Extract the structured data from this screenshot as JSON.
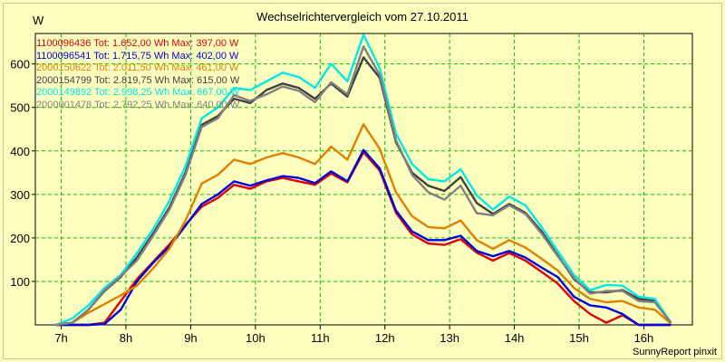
{
  "chart_data": {
    "type": "line",
    "title": "Wechselrichtervergleich vom 27.10.2011",
    "ylabel": "W",
    "xlabel": "",
    "footer": "SunnyReport pinxit",
    "ylim": [
      0,
      670
    ],
    "xlim": [
      6.6,
      16.75
    ],
    "grid": true,
    "legend_position": "top-left",
    "y_ticks": [
      100,
      200,
      300,
      400,
      500,
      600
    ],
    "y_tick_labels": [
      "100",
      "200",
      "300",
      "400",
      "500",
      "600"
    ],
    "x_ticks": [
      7,
      8,
      9,
      10,
      11,
      12,
      13,
      14,
      15,
      16
    ],
    "x_tick_labels": [
      "7h",
      "8h",
      "9h",
      "10h",
      "11h",
      "12h",
      "13h",
      "14h",
      "15h",
      "16h"
    ],
    "x": [
      6.92,
      7.17,
      7.42,
      7.67,
      7.92,
      8.17,
      8.42,
      8.67,
      8.92,
      9.17,
      9.42,
      9.67,
      9.92,
      10.17,
      10.42,
      10.67,
      10.92,
      11.17,
      11.42,
      11.67,
      11.92,
      12.17,
      12.42,
      12.67,
      12.92,
      13.17,
      13.42,
      13.67,
      13.92,
      14.17,
      14.42,
      14.67,
      14.92,
      15.17,
      15.42,
      15.67,
      15.92,
      16.17,
      16.42
    ],
    "series": [
      {
        "name": "1100096436",
        "label": "1100096436 Tot: 1.652,00 Wh Max: 397,00 W",
        "color": "#dd0000",
        "values": [
          0,
          0,
          0,
          5,
          55,
          105,
          145,
          185,
          230,
          272,
          292,
          322,
          313,
          330,
          338,
          330,
          322,
          348,
          328,
          397,
          355,
          258,
          208,
          187,
          184,
          197,
          166,
          148,
          165,
          148,
          122,
          95,
          55,
          25,
          5,
          22,
          0,
          0,
          0
        ]
      },
      {
        "name": "1100096541",
        "label": "1100096541 Tot: 1.715,75 Wh Max: 402,00 W",
        "color": "#0000dd",
        "values": [
          0,
          0,
          0,
          2,
          35,
          100,
          143,
          180,
          228,
          278,
          300,
          330,
          320,
          332,
          342,
          338,
          326,
          353,
          330,
          402,
          360,
          263,
          215,
          195,
          195,
          205,
          170,
          158,
          170,
          155,
          132,
          110,
          65,
          45,
          40,
          25,
          0,
          0,
          0
        ]
      },
      {
        "name": "2000150622",
        "label": "2000150622 Tot: 2.011,50 Wh Max: 461,00 W",
        "color": "#e08000",
        "values": [
          0,
          5,
          28,
          48,
          68,
          90,
          130,
          175,
          240,
          325,
          345,
          380,
          370,
          385,
          395,
          385,
          370,
          410,
          380,
          461,
          405,
          305,
          250,
          225,
          222,
          240,
          195,
          175,
          195,
          178,
          152,
          125,
          85,
          60,
          52,
          55,
          40,
          35,
          3
        ]
      },
      {
        "name": "2000154799",
        "label": "2000154799 Tot: 2.819,75 Wh Max: 615,00 W",
        "color": "#404040",
        "values": [
          0,
          5,
          35,
          78,
          110,
          155,
          210,
          270,
          350,
          460,
          480,
          520,
          510,
          540,
          555,
          545,
          520,
          555,
          525,
          615,
          568,
          420,
          350,
          320,
          308,
          340,
          280,
          255,
          278,
          258,
          215,
          160,
          105,
          75,
          75,
          80,
          60,
          55,
          5
        ]
      },
      {
        "name": "2000149892",
        "label": "2000149892 Tot: 2.998,25 Wh Max: 667,00 W",
        "color": "#00e8e8",
        "values": [
          0,
          15,
          45,
          85,
          115,
          165,
          220,
          285,
          365,
          475,
          500,
          545,
          540,
          560,
          580,
          570,
          545,
          600,
          560,
          667,
          590,
          440,
          370,
          335,
          330,
          358,
          298,
          265,
          295,
          275,
          225,
          170,
          115,
          80,
          92,
          90,
          65,
          60,
          5
        ]
      },
      {
        "name": "2000001478",
        "label": "2000001478 Tot: 2.792,25 Wh Max: 640,00 W",
        "color": "#808080",
        "values": [
          0,
          5,
          35,
          80,
          112,
          148,
          205,
          265,
          345,
          455,
          475,
          528,
          515,
          530,
          548,
          538,
          512,
          558,
          530,
          640,
          575,
          425,
          345,
          305,
          288,
          320,
          257,
          252,
          275,
          255,
          210,
          158,
          108,
          72,
          78,
          78,
          55,
          52,
          5
        ]
      }
    ]
  },
  "colors": {
    "background": "#ffffc0",
    "grid": "#00c000",
    "axis": "#000000"
  }
}
